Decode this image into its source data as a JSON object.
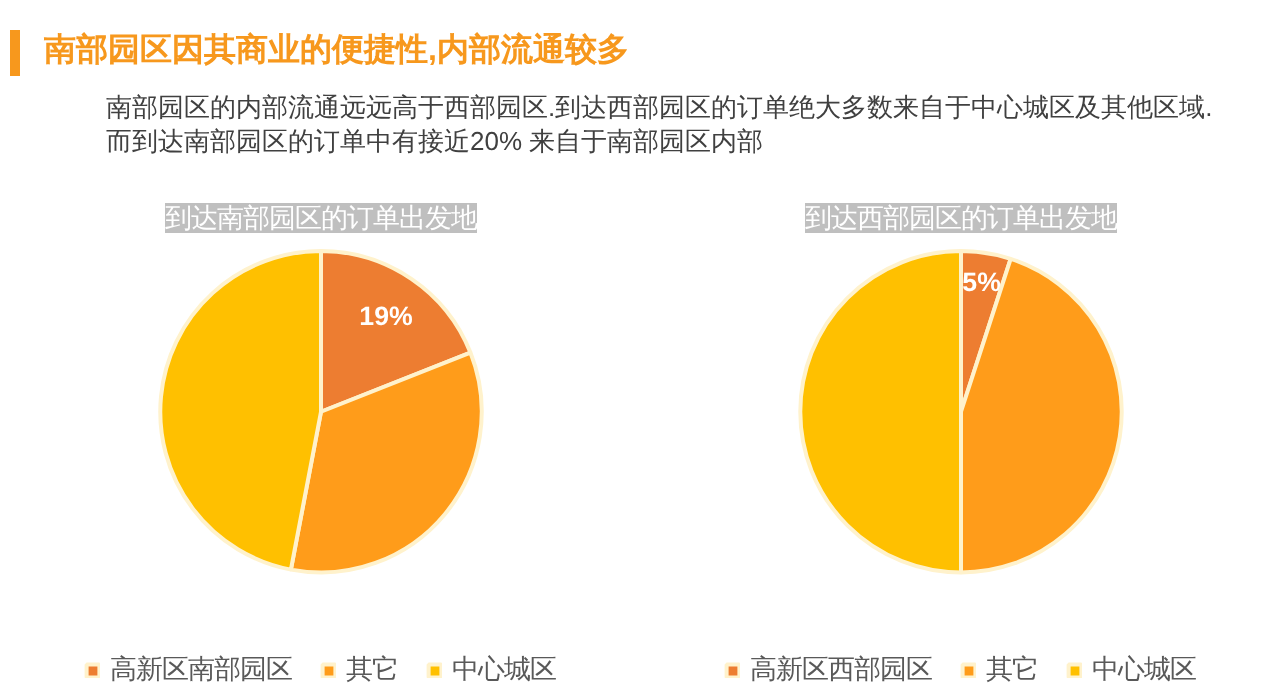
{
  "chart_data": [
    {
      "type": "pie",
      "title": "到达南部园区的订单出发地",
      "categories": [
        "高新区南部园区",
        "其它",
        "中心城区"
      ],
      "values": [
        19,
        34,
        47
      ],
      "colors": [
        "#ed7d31",
        "#ff9c1a",
        "#ffc000"
      ],
      "value_labels": [
        "19%",
        null,
        null
      ],
      "legend": "bottom",
      "annotations": [
        "南部园区因其商业的便捷性,内部流通较多",
        "南部园区的内部流通远远高于西部园区.到达西部园区的订单绝大多数来自于中心城区及其他区域.",
        "而到达南部园区的订单中有接近20% 来自于南部园区内部"
      ]
    },
    {
      "type": "pie",
      "title": "到达西部园区的订单出发地",
      "categories": [
        "高新区西部园区",
        "其它",
        "中心城区"
      ],
      "values": [
        5,
        45,
        50
      ],
      "colors": [
        "#ed7d31",
        "#ff9c1a",
        "#ffc000"
      ],
      "value_labels": [
        "5%",
        null,
        null
      ],
      "legend": "bottom"
    }
  ]
}
